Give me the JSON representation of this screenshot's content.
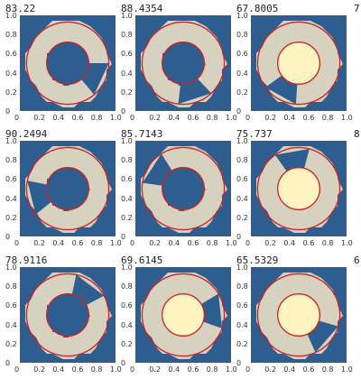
{
  "colors": {
    "background_blue": "#2e5d8f",
    "tile_beige": "#d7d2c0",
    "core_cream": "#fff3c2",
    "circle_red": "#cc2222"
  },
  "panels": [
    {
      "label": "83.22",
      "visible_partial_label": "7",
      "core": "beige"
    },
    {
      "label": "88.4354",
      "core": "beige"
    },
    {
      "label": "67.8005",
      "core": "cream"
    },
    {
      "label": "90.2494",
      "visible_partial_label": "8",
      "core": "beige"
    },
    {
      "label": "85.7143",
      "core": "beige"
    },
    {
      "label": "75.737",
      "core": "cream"
    },
    {
      "label": "78.9116",
      "visible_partial_label": "6",
      "core": "beige"
    },
    {
      "label": "69.6145",
      "core": "cream"
    },
    {
      "label": "65.5329",
      "core": "cream"
    }
  ],
  "axes": {
    "x_ticks": [
      "0",
      "0.2",
      "0.4",
      "0.6",
      "0.8",
      "1.0"
    ],
    "y_ticks": [
      "0",
      "0.2",
      "0.4",
      "0.6",
      "0.8",
      "1.0"
    ]
  }
}
